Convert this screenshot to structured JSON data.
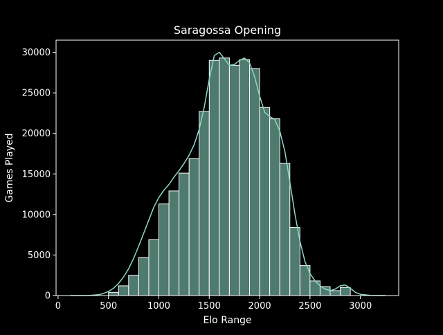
{
  "chart_data": {
    "type": "bar",
    "title": "Saragossa Opening",
    "xlabel": "Elo Range",
    "ylabel": "Games Played",
    "xlim": [
      -20,
      3380
    ],
    "ylim": [
      0,
      31500
    ],
    "x_ticks": [
      0,
      500,
      1000,
      1500,
      2000,
      2500,
      3000
    ],
    "y_ticks": [
      0,
      5000,
      10000,
      15000,
      20000,
      25000,
      30000
    ],
    "grid": false,
    "legend": "none",
    "bin_edges": [
      500,
      600,
      700,
      800,
      900,
      1000,
      1100,
      1200,
      1300,
      1400,
      1500,
      1600,
      1700,
      1800,
      1900,
      2000,
      2100,
      2200,
      2300,
      2400,
      2500,
      2600,
      2700,
      2800,
      2900
    ],
    "bin_centers": [
      550,
      650,
      750,
      850,
      950,
      1050,
      1150,
      1250,
      1350,
      1450,
      1550,
      1650,
      1750,
      1850,
      1950,
      2050,
      2150,
      2250,
      2350,
      2450,
      2550,
      2650,
      2750,
      2850
    ],
    "values": [
      400,
      1200,
      2500,
      4700,
      6900,
      11300,
      12900,
      15100,
      16900,
      22700,
      29000,
      29300,
      28400,
      29100,
      28000,
      23200,
      21800,
      16300,
      8400,
      3700,
      1800,
      1100,
      600,
      1000
    ],
    "kde": {
      "x": [
        120,
        300,
        400,
        450,
        500,
        550,
        600,
        650,
        700,
        750,
        800,
        850,
        900,
        950,
        1000,
        1050,
        1100,
        1150,
        1200,
        1250,
        1300,
        1350,
        1400,
        1450,
        1500,
        1550,
        1600,
        1650,
        1700,
        1750,
        1800,
        1850,
        1900,
        1950,
        2000,
        2050,
        2100,
        2150,
        2200,
        2250,
        2300,
        2350,
        2400,
        2450,
        2500,
        2550,
        2600,
        2650,
        2700,
        2750,
        2800,
        2850,
        2900,
        2950,
        3000,
        3100,
        3250
      ],
      "y": [
        0,
        0,
        100,
        250,
        500,
        900,
        1500,
        2300,
        3300,
        4600,
        6100,
        7700,
        9300,
        10900,
        12100,
        13000,
        13700,
        14600,
        15400,
        16300,
        17300,
        18600,
        20500,
        23200,
        26700,
        29600,
        30000,
        29200,
        28400,
        28500,
        29000,
        29300,
        28700,
        27000,
        24600,
        22600,
        22100,
        21700,
        20300,
        17800,
        14000,
        10100,
        6700,
        4200,
        2700,
        1800,
        1200,
        800,
        600,
        800,
        1200,
        1300,
        900,
        400,
        150,
        20,
        0
      ]
    },
    "bar_color": "#4f7a6e",
    "bar_edge_color": "#ffffff",
    "line_color": "#8ed8c6",
    "background": "#000000",
    "foreground": "#ffffff"
  }
}
